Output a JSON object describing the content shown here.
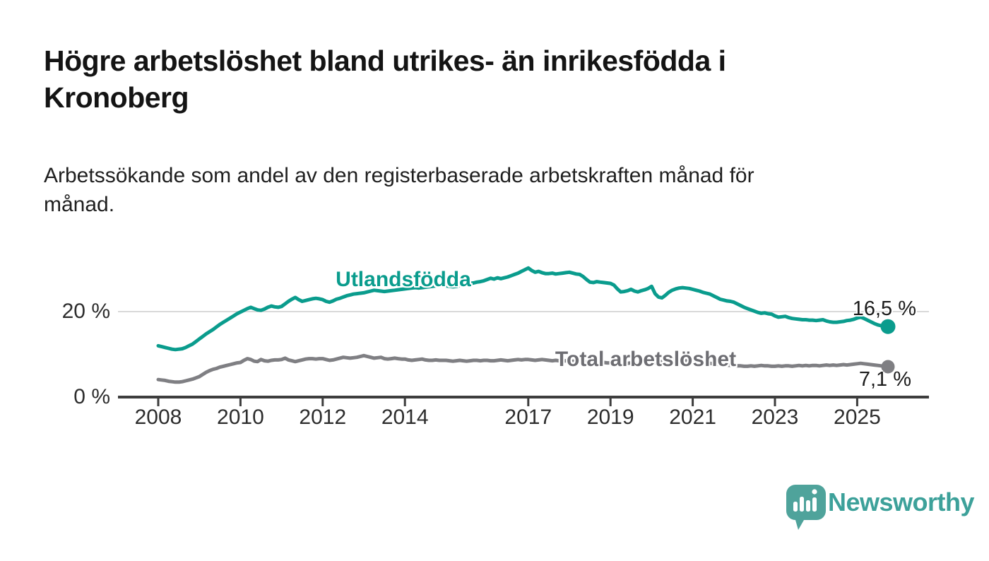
{
  "header": {
    "title_line1": "Högre arbetslöshet bland utrikes- än inrikesfödda i",
    "title_line2": "Kronoberg",
    "subtitle_line1": "Arbetssökande som andel av den registerbaserade arbetskraften månad för",
    "subtitle_line2": "månad."
  },
  "chart_data": {
    "type": "line",
    "title": "Högre arbetslöshet bland utrikes- än inrikesfödda i Kronoberg",
    "subtitle": "Arbetssökande som andel av den registerbaserade arbetskraften månad för månad.",
    "x_start_year": 2008,
    "x_interval": "monthly",
    "x_end": "2025-10",
    "x_ticks": [
      2008,
      2010,
      2012,
      2014,
      2017,
      2019,
      2021,
      2023,
      2025
    ],
    "y_tick_labels": [
      "0 %",
      "20 %"
    ],
    "ylim": [
      0,
      33
    ],
    "grid_y_values": [
      20
    ],
    "legend": "inline-labels-on-lines",
    "colors": {
      "utlandsfodda": "#0a9c8d",
      "total": "#7f7f83",
      "axis": "#3d3d3d",
      "grid": "#d9d9d9"
    },
    "series": [
      {
        "name": "Utlandsfödda",
        "color": "#0a9c8d",
        "end_label": "16,5 %",
        "end_value": 16.5,
        "values": [
          12.0,
          11.8,
          11.6,
          11.4,
          11.2,
          11.1,
          11.2,
          11.3,
          11.6,
          12.0,
          12.4,
          13.0,
          13.6,
          14.2,
          14.8,
          15.3,
          15.8,
          16.4,
          17.0,
          17.5,
          18.0,
          18.5,
          19.0,
          19.5,
          19.9,
          20.3,
          20.7,
          21.0,
          20.7,
          20.4,
          20.3,
          20.6,
          21.0,
          21.3,
          21.1,
          21.0,
          21.2,
          21.8,
          22.4,
          22.9,
          23.3,
          22.8,
          22.4,
          22.6,
          22.8,
          23.0,
          23.1,
          23.0,
          22.8,
          22.4,
          22.2,
          22.5,
          22.9,
          23.1,
          23.4,
          23.7,
          23.9,
          24.1,
          24.2,
          24.3,
          24.4,
          24.6,
          24.8,
          25.0,
          24.9,
          24.8,
          24.7,
          24.8,
          24.9,
          25.0,
          25.1,
          25.2,
          25.3,
          25.4,
          25.5,
          25.6,
          25.5,
          25.6,
          25.7,
          25.8,
          25.9,
          26.0,
          26.1,
          26.1,
          26.0,
          25.9,
          25.8,
          25.9,
          26.1,
          26.3,
          26.4,
          26.6,
          26.7,
          26.9,
          27.0,
          27.2,
          27.5,
          27.8,
          27.6,
          27.9,
          27.7,
          27.9,
          28.1,
          28.4,
          28.7,
          29.0,
          29.4,
          29.8,
          30.2,
          29.6,
          29.2,
          29.4,
          29.1,
          28.9,
          28.9,
          29.0,
          28.8,
          28.9,
          29.0,
          29.1,
          29.2,
          29.0,
          28.8,
          28.7,
          28.2,
          27.5,
          26.9,
          26.8,
          27.0,
          26.9,
          26.8,
          26.7,
          26.6,
          26.2,
          25.3,
          24.6,
          24.7,
          24.9,
          25.2,
          24.8,
          24.6,
          24.9,
          25.1,
          25.4,
          25.9,
          24.2,
          23.4,
          23.2,
          23.8,
          24.5,
          25.0,
          25.3,
          25.5,
          25.6,
          25.5,
          25.4,
          25.2,
          25.0,
          24.8,
          24.5,
          24.3,
          24.1,
          23.7,
          23.3,
          22.9,
          22.7,
          22.5,
          22.4,
          22.2,
          21.8,
          21.4,
          21.0,
          20.7,
          20.4,
          20.1,
          19.8,
          19.6,
          19.7,
          19.5,
          19.4,
          19.0,
          18.7,
          18.8,
          18.9,
          18.6,
          18.4,
          18.3,
          18.2,
          18.1,
          18.1,
          18.0,
          18.0,
          17.9,
          18.0,
          18.1,
          17.8,
          17.6,
          17.5,
          17.5,
          17.6,
          17.7,
          17.9,
          18.0,
          18.2,
          18.5,
          18.7,
          18.4,
          18.0,
          17.6,
          17.2,
          16.9,
          16.7,
          16.6,
          16.5
        ]
      },
      {
        "name": "Total arbetslöshet",
        "color": "#7f7f83",
        "end_label": "7,1 %",
        "end_value": 7.1,
        "values": [
          4.1,
          4.0,
          3.9,
          3.7,
          3.6,
          3.5,
          3.5,
          3.6,
          3.8,
          4.0,
          4.2,
          4.5,
          4.8,
          5.3,
          5.8,
          6.2,
          6.5,
          6.7,
          7.0,
          7.2,
          7.4,
          7.6,
          7.8,
          8.0,
          8.1,
          8.6,
          9.0,
          8.8,
          8.4,
          8.3,
          8.8,
          8.5,
          8.4,
          8.6,
          8.7,
          8.7,
          8.8,
          9.1,
          8.7,
          8.5,
          8.3,
          8.5,
          8.7,
          8.9,
          9.0,
          9.0,
          8.9,
          9.0,
          9.0,
          8.8,
          8.6,
          8.7,
          8.9,
          9.1,
          9.3,
          9.2,
          9.1,
          9.2,
          9.3,
          9.5,
          9.7,
          9.5,
          9.3,
          9.1,
          9.2,
          9.3,
          9.0,
          8.9,
          9.0,
          9.1,
          9.0,
          8.9,
          8.9,
          8.7,
          8.6,
          8.7,
          8.8,
          8.9,
          8.7,
          8.6,
          8.6,
          8.7,
          8.6,
          8.6,
          8.6,
          8.5,
          8.4,
          8.5,
          8.6,
          8.5,
          8.4,
          8.5,
          8.6,
          8.6,
          8.5,
          8.6,
          8.6,
          8.5,
          8.5,
          8.6,
          8.7,
          8.6,
          8.5,
          8.6,
          8.7,
          8.8,
          8.7,
          8.8,
          8.8,
          8.7,
          8.6,
          8.7,
          8.8,
          8.7,
          8.6,
          8.5,
          8.6,
          8.5,
          8.4,
          8.5,
          8.5,
          8.4,
          8.3,
          8.2,
          8.3,
          8.2,
          8.1,
          8.2,
          8.1,
          8.0,
          8.1,
          8.0,
          8.0,
          7.9,
          7.8,
          7.9,
          7.8,
          7.9,
          8.0,
          7.9,
          7.8,
          7.9,
          8.0,
          8.1,
          8.2,
          7.9,
          8.0,
          8.3,
          8.6,
          8.8,
          8.9,
          8.8,
          8.7,
          8.6,
          8.5,
          8.5,
          8.4,
          8.3,
          8.2,
          8.1,
          8.0,
          7.9,
          7.8,
          7.7,
          7.6,
          7.5,
          7.5,
          7.4,
          7.4,
          7.3,
          7.3,
          7.2,
          7.2,
          7.3,
          7.2,
          7.3,
          7.4,
          7.3,
          7.3,
          7.2,
          7.2,
          7.3,
          7.2,
          7.3,
          7.3,
          7.2,
          7.3,
          7.4,
          7.3,
          7.4,
          7.3,
          7.4,
          7.4,
          7.3,
          7.4,
          7.5,
          7.4,
          7.5,
          7.4,
          7.5,
          7.6,
          7.5,
          7.6,
          7.7,
          7.8,
          7.9,
          7.8,
          7.7,
          7.6,
          7.5,
          7.4,
          7.3,
          7.2,
          7.1
        ]
      }
    ]
  },
  "footer": {
    "brand": "Newsworthy"
  }
}
